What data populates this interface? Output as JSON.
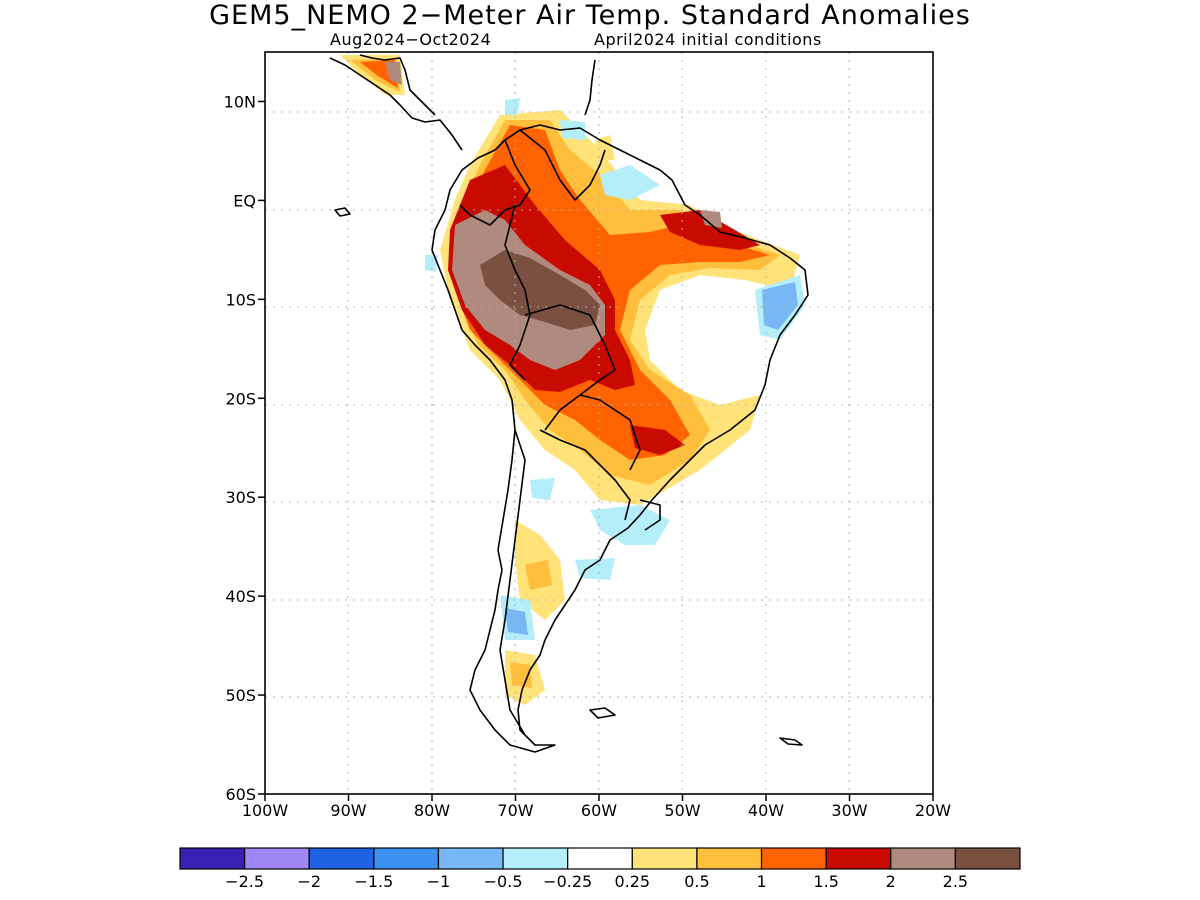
{
  "title": "GEM5_NEMO 2−Meter Air Temp. Standard Anomalies",
  "subtitle_period": "Aug2024−Oct2024",
  "subtitle_init": "April2024 initial conditions",
  "map": {
    "lon_range": [
      -100,
      -20
    ],
    "lat_range": [
      -60,
      15
    ],
    "lat_ticks": [
      {
        "lat": 10,
        "label": "10N"
      },
      {
        "lat": 0,
        "label": "EQ"
      },
      {
        "lat": -10,
        "label": "10S"
      },
      {
        "lat": -20,
        "label": "20S"
      },
      {
        "lat": -30,
        "label": "30S"
      },
      {
        "lat": -40,
        "label": "40S"
      },
      {
        "lat": -50,
        "label": "50S"
      },
      {
        "lat": -60,
        "label": "60S"
      }
    ],
    "lon_ticks": [
      {
        "lon": -100,
        "label": "100W"
      },
      {
        "lon": -90,
        "label": "90W"
      },
      {
        "lon": -80,
        "label": "80W"
      },
      {
        "lon": -70,
        "label": "70W"
      },
      {
        "lon": -60,
        "label": "60W"
      },
      {
        "lon": -50,
        "label": "50W"
      },
      {
        "lon": -40,
        "label": "40W"
      },
      {
        "lon": -30,
        "label": "30W"
      },
      {
        "lon": -20,
        "label": "20W"
      }
    ]
  },
  "colorbar": {
    "colors": [
      "#3a1fb3",
      "#9f87f5",
      "#1f63e3",
      "#3c92f0",
      "#78b7f5",
      "#b4eefa",
      "#ffffff",
      "#ffe278",
      "#ffbe3c",
      "#ff6200",
      "#c80a00",
      "#b08a7e",
      "#7a5040"
    ],
    "labels": [
      "−2.5",
      "−2",
      "−1.5",
      "−1",
      "−0.5",
      "−0.25",
      "0.25",
      "0.5",
      "1",
      "1.5",
      "2",
      "2.5"
    ]
  }
}
